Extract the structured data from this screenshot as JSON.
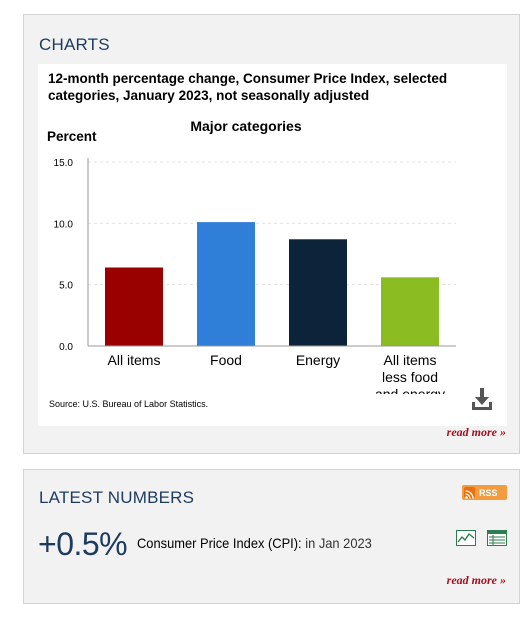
{
  "charts_panel": {
    "heading": "CHARTS",
    "chart_title": "12-month percentage change, Consumer Price Index, selected categories, January 2023, not seasonally adjusted",
    "source": "Source: U.S. Bureau of Labor Statistics.",
    "read_more": "read more »"
  },
  "chart_data": {
    "type": "bar",
    "title": "Major categories",
    "ylabel": "Percent",
    "xlabel": "",
    "ylim": [
      0,
      15
    ],
    "yticks": [
      "0.0",
      "5.0",
      "10.0",
      "15.0"
    ],
    "ytick_values": [
      0,
      5,
      10,
      15
    ],
    "categories": [
      [
        "All items"
      ],
      [
        "Food"
      ],
      [
        "Energy"
      ],
      [
        "All items",
        "less food",
        "and energy"
      ]
    ],
    "category_names": [
      "All items",
      "Food",
      "Energy",
      "All items less food and energy"
    ],
    "values": [
      6.4,
      10.1,
      8.7,
      5.6
    ],
    "colors": [
      "#990000",
      "#2f7ed8",
      "#0d233a",
      "#8bbc21"
    ],
    "grid": true
  },
  "latest_panel": {
    "heading": "LATEST NUMBERS",
    "rss_label": "RSS",
    "big_value": "+0.5%",
    "label": "Consumer Price Index (CPI):",
    "period": "in Jan 2023",
    "read_more": "read more »"
  },
  "icons": {
    "download": "download-icon",
    "rss": "rss-icon",
    "chart": "line-chart-icon",
    "table": "table-icon"
  }
}
